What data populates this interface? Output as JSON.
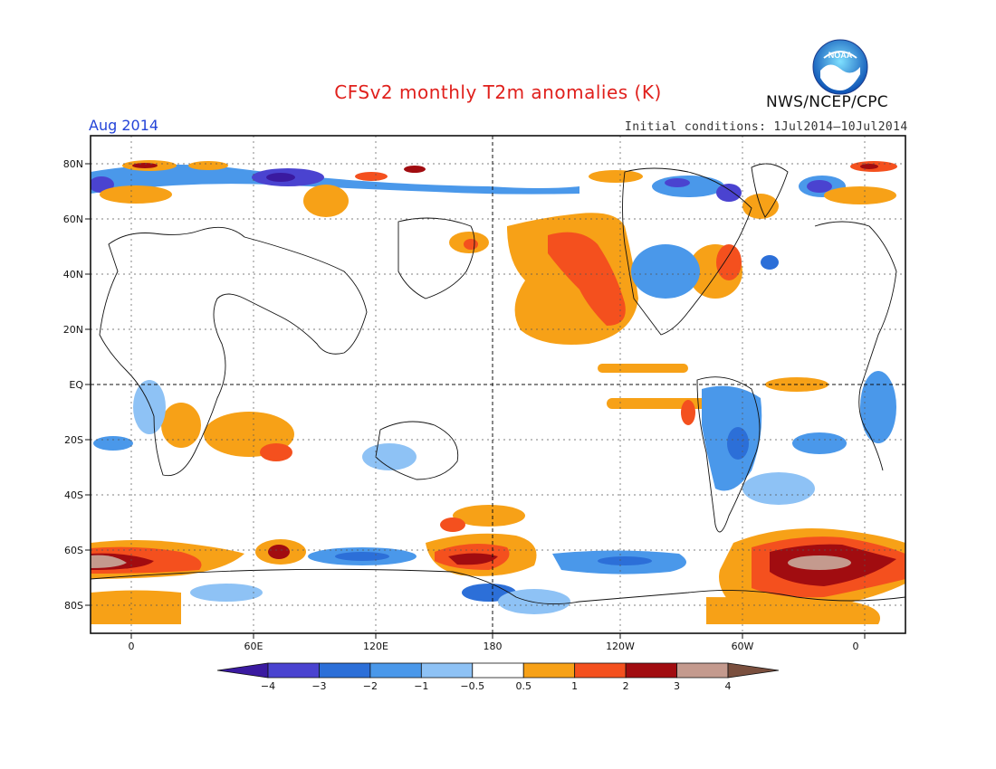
{
  "title": "CFSv2 monthly T2m anomalies (K)",
  "month": "Aug 2014",
  "initial_conditions": "Initial conditions: 1Jul2014—10Jul2014",
  "agency": "NWS/NCEP/CPC",
  "logo_text": "NOAA",
  "lat_labels": [
    "80N",
    "60N",
    "40N",
    "20N",
    "EQ",
    "20S",
    "40S",
    "60S",
    "80S"
  ],
  "lon_labels": [
    "0",
    "60E",
    "120E",
    "180",
    "120W",
    "60W",
    "0"
  ],
  "colorbar": {
    "labels": [
      "−4",
      "−3",
      "−2",
      "−1",
      "−0.5",
      "0.5",
      "1",
      "2",
      "3",
      "4"
    ],
    "colors": [
      "#3a1aa0",
      "#4a43d0",
      "#2c6fd8",
      "#4a98ea",
      "#8ec2f5",
      "#ffffff",
      "#f7a117",
      "#f4501e",
      "#a10c10",
      "#c49a8e",
      "#7a4f3e"
    ]
  },
  "map_data": {
    "variable": "T2m anomaly",
    "units": "K",
    "lat_range": [
      -90,
      90
    ],
    "lon_range": [
      -20,
      380
    ],
    "anomaly_regions": [
      {
        "region": "NE Pacific / Gulf of Alaska",
        "level": "warm",
        "class": "1 to 2"
      },
      {
        "region": "Southern Ocean near 180",
        "level": "warm",
        "class": "2 to 3"
      },
      {
        "region": "South Atlantic / Weddell 60S",
        "level": "warm",
        "class": "3 to 4"
      },
      {
        "region": "Southern Ocean south of Africa",
        "level": "warm",
        "class": "3 to 4"
      },
      {
        "region": "Central South America",
        "level": "cold",
        "class": "-2 to -1"
      },
      {
        "region": "Arctic north of Siberia",
        "level": "cold",
        "class": "-3 to -2"
      },
      {
        "region": "Southern Ocean 120W",
        "level": "cold",
        "class": "-2 to -1"
      }
    ]
  }
}
